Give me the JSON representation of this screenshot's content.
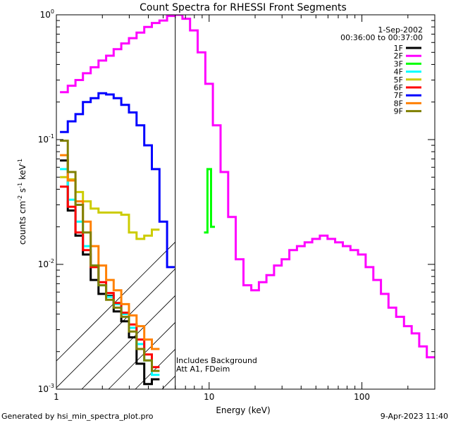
{
  "chart_data": {
    "type": "line",
    "title": "Count Spectra for RHESSI Front Segments",
    "xlabel": "Energy (keV)",
    "ylabel_parts": [
      "counts cm",
      "-2",
      " s",
      "-1",
      " keV",
      "-1"
    ],
    "x_scale": "log",
    "y_scale": "log",
    "xlim": [
      1,
      300
    ],
    "ylim": [
      0.001,
      1.0
    ],
    "x_ticks": [
      {
        "value": 10,
        "label": "10"
      },
      {
        "value": 100,
        "label": "100"
      }
    ],
    "x_edge_labels": [
      {
        "value": 1,
        "label": "1"
      }
    ],
    "y_ticks": [
      {
        "value": 1.0,
        "label": "10",
        "exp": "0"
      },
      {
        "value": 0.1,
        "label": "10",
        "exp": "-1"
      },
      {
        "value": 0.01,
        "label": "10",
        "exp": "-2"
      },
      {
        "value": 0.001,
        "label": "10",
        "exp": "-3"
      }
    ],
    "date": "1-Sep-2002",
    "time_range": "00:36:00 to 00:37:00",
    "attenuator_boundary_kev": 6.0,
    "annotations": [
      "Includes Background",
      "Att A1, FDeim"
    ],
    "footer_left": "Generated by hsi_min_spectra_plot.pro",
    "footer_right": "9-Apr-2023 11:40",
    "legend_position": "top-right",
    "series": [
      {
        "name": "1F",
        "color": "#000000",
        "x": [
          1.12,
          1.26,
          1.41,
          1.58,
          1.78,
          2.0,
          2.24,
          2.51,
          2.82,
          3.16,
          3.55,
          3.98,
          4.47
        ],
        "values": [
          0.068,
          0.027,
          0.017,
          0.012,
          0.0075,
          0.0058,
          0.0056,
          0.0042,
          0.0035,
          0.0026,
          0.0016,
          0.0011,
          0.0012
        ]
      },
      {
        "name": "2F",
        "color": "#ff00ff",
        "x": [
          1.12,
          1.26,
          1.41,
          1.58,
          1.78,
          2.0,
          2.24,
          2.51,
          2.82,
          3.16,
          3.55,
          3.98,
          4.47,
          5.01,
          5.62,
          6.31,
          7.08,
          7.94,
          8.91,
          10.0,
          11.2,
          12.6,
          14.1,
          15.8,
          17.8,
          20.0,
          22.4,
          25.1,
          28.2,
          31.6,
          35.5,
          39.8,
          44.7,
          50.1,
          56.2,
          63.1,
          70.8,
          79.4,
          89.1,
          100,
          112,
          126,
          141,
          158,
          178,
          200,
          224,
          251,
          282
        ],
        "values": [
          0.24,
          0.27,
          0.3,
          0.34,
          0.38,
          0.43,
          0.47,
          0.53,
          0.59,
          0.65,
          0.72,
          0.8,
          0.86,
          0.9,
          0.98,
          1.0,
          0.93,
          0.75,
          0.5,
          0.28,
          0.13,
          0.055,
          0.024,
          0.011,
          0.0068,
          0.0062,
          0.0072,
          0.0082,
          0.0098,
          0.011,
          0.013,
          0.014,
          0.015,
          0.016,
          0.017,
          0.016,
          0.015,
          0.014,
          0.013,
          0.012,
          0.0095,
          0.0075,
          0.0058,
          0.0045,
          0.0038,
          0.0032,
          0.0028,
          0.0022,
          0.0018
        ]
      },
      {
        "name": "3F",
        "color": "#00ff00",
        "x": [
          9.5,
          10.0,
          10.6
        ],
        "values": [
          0.018,
          0.058,
          0.02
        ]
      },
      {
        "name": "4F",
        "color": "#00ffff",
        "x": [
          1.12,
          1.26,
          1.41,
          1.58,
          1.78,
          2.0,
          2.24,
          2.51,
          2.82,
          3.16,
          3.55,
          3.98,
          4.47
        ],
        "values": [
          0.058,
          0.033,
          0.022,
          0.014,
          0.0098,
          0.0068,
          0.0055,
          0.0048,
          0.004,
          0.0031,
          0.0023,
          0.0017,
          0.0013
        ]
      },
      {
        "name": "5F",
        "color": "#cccc00",
        "x": [
          1.12,
          1.26,
          1.41,
          1.58,
          1.78,
          2.0,
          2.24,
          2.51,
          2.82,
          3.16,
          3.55,
          3.98,
          4.47
        ],
        "values": [
          0.05,
          0.048,
          0.038,
          0.032,
          0.028,
          0.026,
          0.026,
          0.026,
          0.025,
          0.018,
          0.016,
          0.017,
          0.019
        ]
      },
      {
        "name": "6F",
        "color": "#ff0000",
        "x": [
          1.12,
          1.26,
          1.41,
          1.58,
          1.78,
          2.0,
          2.24,
          2.51,
          2.82,
          3.16,
          3.55,
          3.98,
          4.47
        ],
        "values": [
          0.042,
          0.029,
          0.018,
          0.013,
          0.0095,
          0.0072,
          0.0059,
          0.0049,
          0.0041,
          0.0033,
          0.0025,
          0.0019,
          0.0015
        ]
      },
      {
        "name": "7F",
        "color": "#0000ff",
        "x": [
          1.12,
          1.26,
          1.41,
          1.58,
          1.78,
          2.0,
          2.24,
          2.51,
          2.82,
          3.16,
          3.55,
          3.98,
          4.47,
          5.01,
          5.62
        ],
        "values": [
          0.115,
          0.14,
          0.16,
          0.2,
          0.215,
          0.235,
          0.23,
          0.215,
          0.19,
          0.165,
          0.13,
          0.09,
          0.058,
          0.022,
          0.0095
        ]
      },
      {
        "name": "8F",
        "color": "#ff8000",
        "x": [
          1.12,
          1.26,
          1.41,
          1.58,
          1.78,
          2.0,
          2.24,
          2.51,
          2.82,
          3.16,
          3.55,
          3.98,
          4.47
        ],
        "values": [
          0.075,
          0.047,
          0.032,
          0.022,
          0.014,
          0.0098,
          0.0075,
          0.0062,
          0.0048,
          0.0039,
          0.0032,
          0.0025,
          0.0021
        ]
      },
      {
        "name": "9F",
        "color": "#808000",
        "x": [
          1.12,
          1.26,
          1.41,
          1.58,
          1.78,
          2.0,
          2.24,
          2.51,
          2.82,
          3.16,
          3.55,
          3.98,
          4.47
        ],
        "values": [
          0.098,
          0.055,
          0.03,
          0.018,
          0.0098,
          0.0068,
          0.0052,
          0.0045,
          0.0038,
          0.0029,
          0.0021,
          0.0017,
          0.0014
        ]
      }
    ]
  }
}
